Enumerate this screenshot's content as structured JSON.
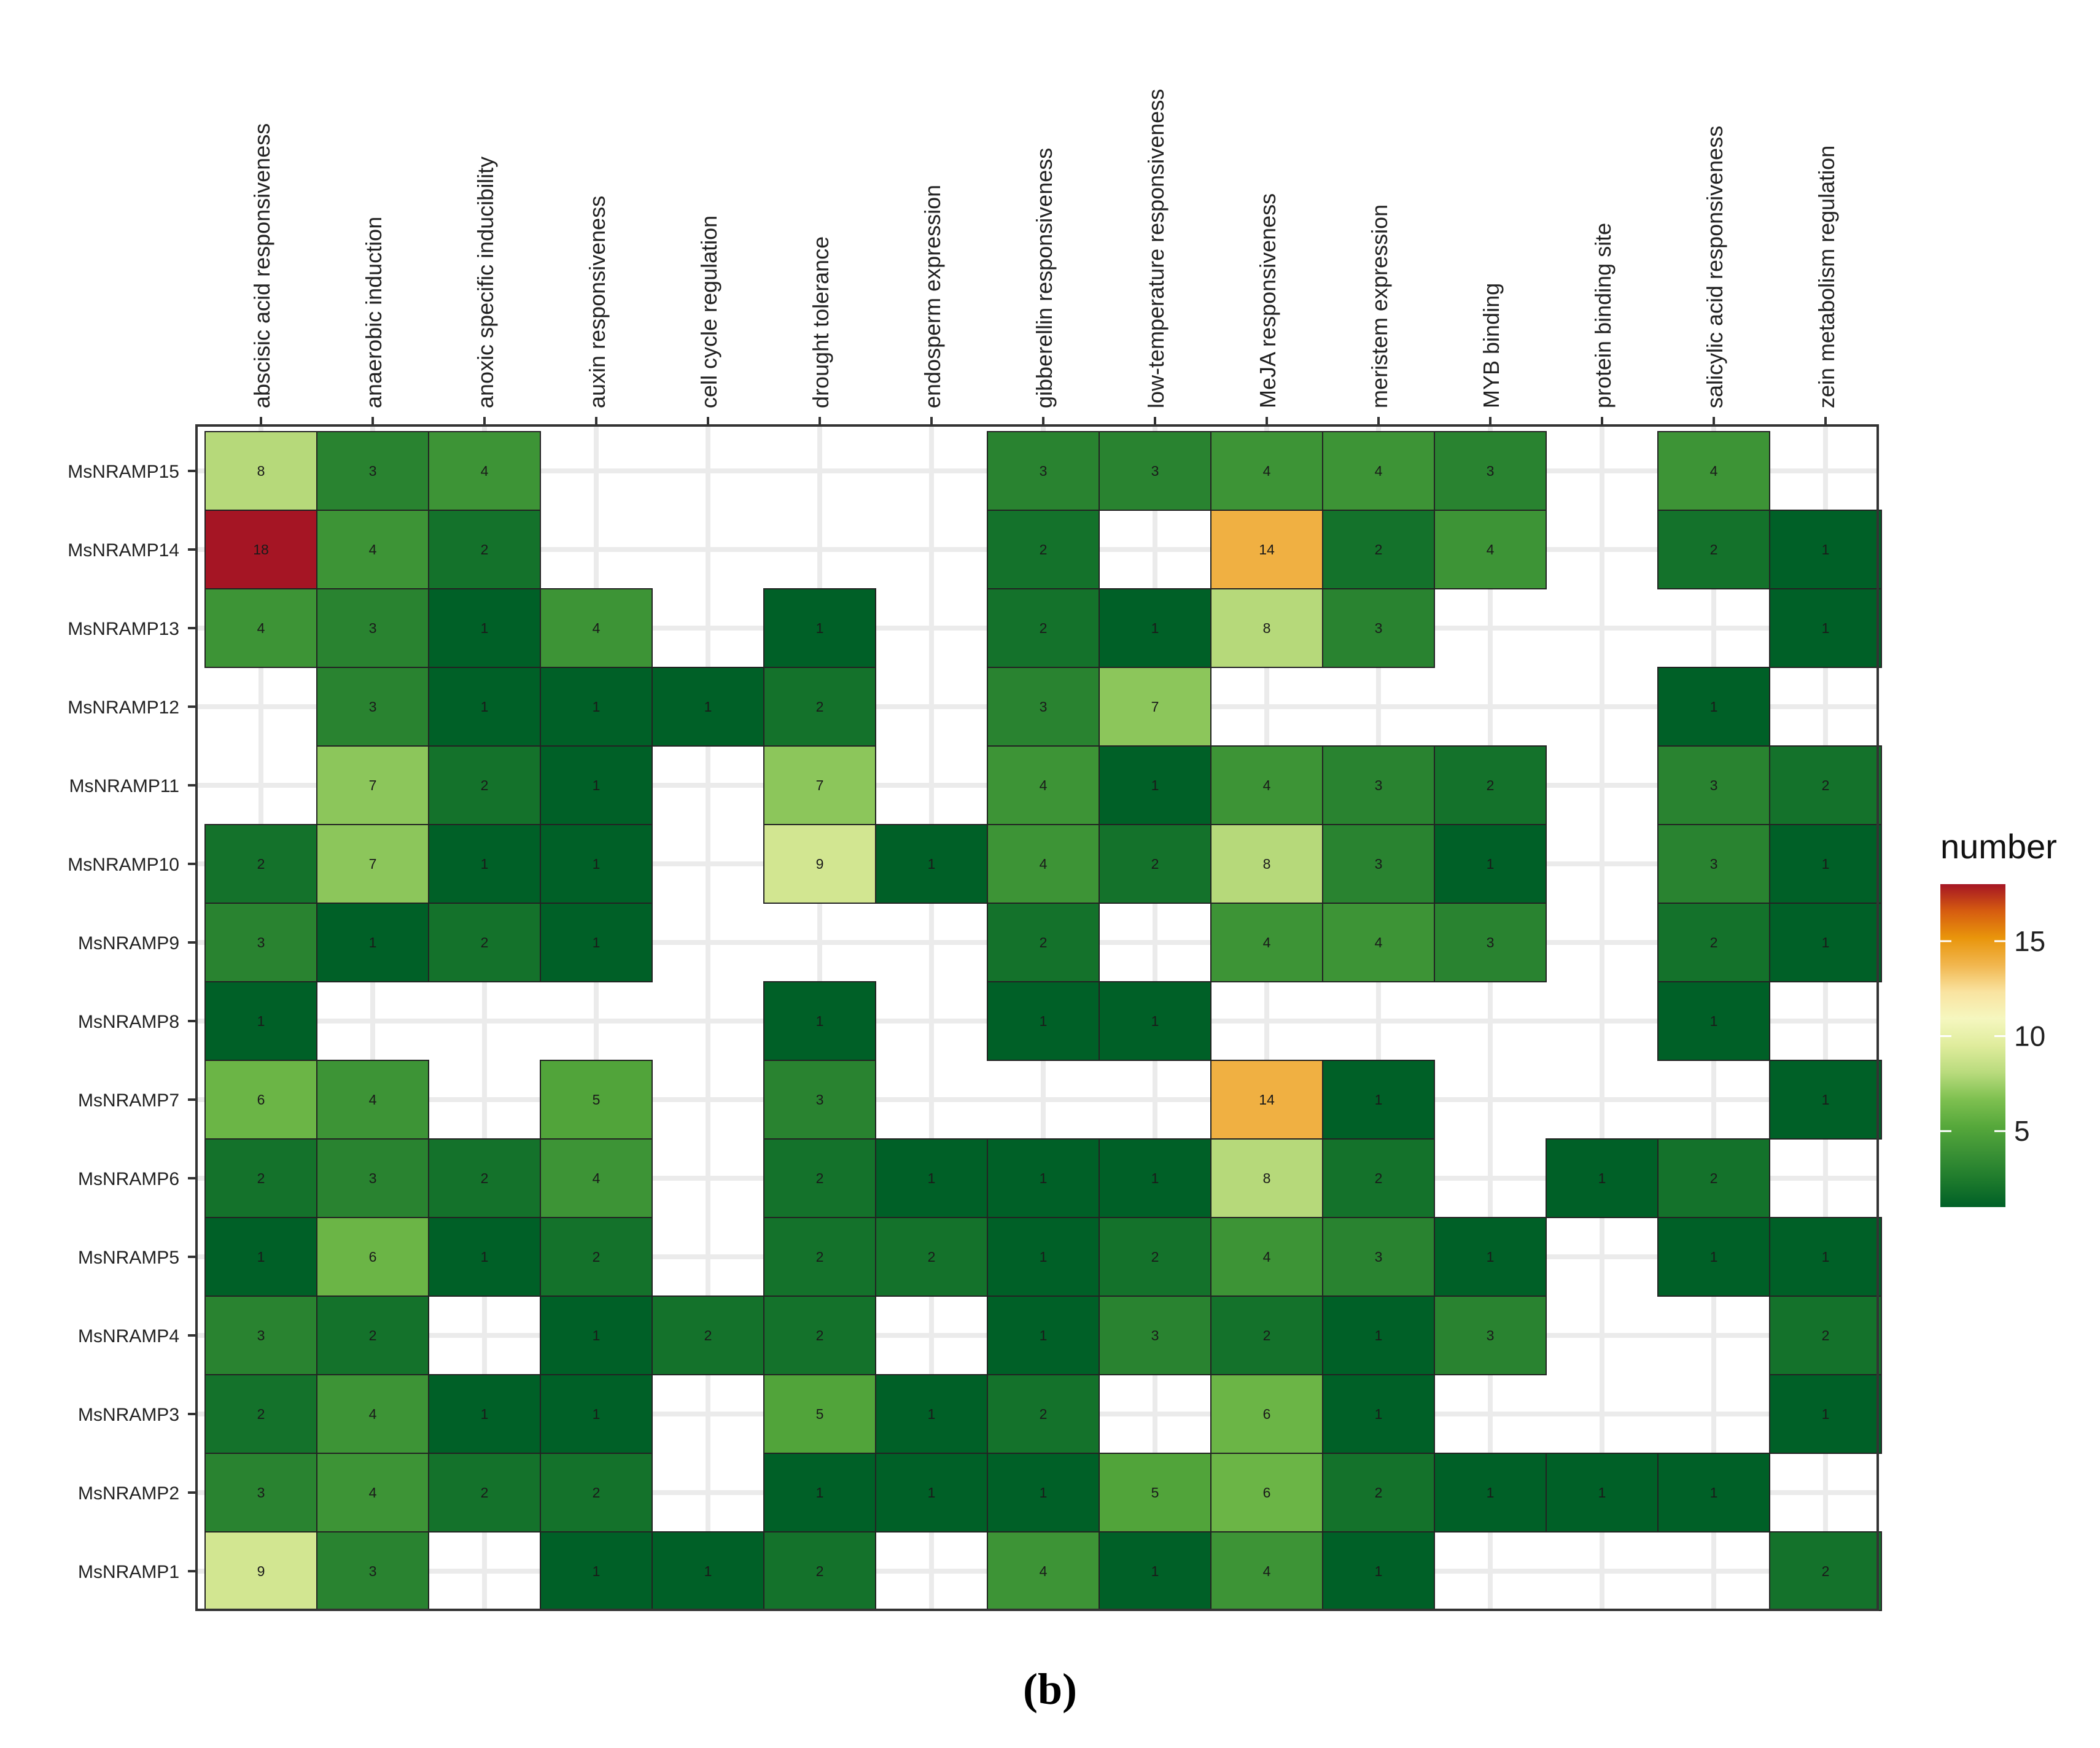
{
  "caption": "(b)",
  "chart_data": {
    "type": "heatmap",
    "title": "",
    "xlabel": "",
    "ylabel": "",
    "x": [
      "abscisic acid responsiveness",
      "anaerobic induction",
      "anoxic specific inducibility",
      "auxin responsiveness",
      "cell cycle regulation",
      "drought tolerance",
      "endosperm expression",
      "gibberellin responsiveness",
      "low-temperature responsiveness",
      "MeJA responsiveness",
      "meristem expression",
      "MYB binding",
      "protein binding site",
      "salicylic acid responsiveness",
      "zein metabolism regulation"
    ],
    "x_position": "top",
    "y": [
      "MsNRAMP15",
      "MsNRAMP14",
      "MsNRAMP13",
      "MsNRAMP12",
      "MsNRAMP11",
      "MsNRAMP10",
      "MsNRAMP9",
      "MsNRAMP8",
      "MsNRAMP7",
      "MsNRAMP6",
      "MsNRAMP5",
      "MsNRAMP4",
      "MsNRAMP3",
      "MsNRAMP2",
      "MsNRAMP1"
    ],
    "values": [
      [
        8,
        3,
        4,
        null,
        null,
        null,
        null,
        3,
        3,
        4,
        4,
        3,
        null,
        4,
        null
      ],
      [
        18,
        4,
        2,
        null,
        null,
        null,
        null,
        2,
        null,
        14,
        2,
        4,
        null,
        2,
        1
      ],
      [
        4,
        3,
        1,
        4,
        null,
        1,
        null,
        2,
        1,
        8,
        3,
        null,
        null,
        null,
        1
      ],
      [
        null,
        3,
        1,
        1,
        1,
        2,
        null,
        3,
        7,
        null,
        null,
        null,
        null,
        1,
        null
      ],
      [
        null,
        7,
        2,
        1,
        null,
        7,
        null,
        4,
        1,
        4,
        3,
        2,
        null,
        3,
        2
      ],
      [
        2,
        7,
        1,
        1,
        null,
        9,
        1,
        4,
        2,
        8,
        3,
        1,
        null,
        3,
        1
      ],
      [
        3,
        1,
        2,
        1,
        null,
        null,
        null,
        2,
        null,
        4,
        4,
        3,
        null,
        2,
        1
      ],
      [
        1,
        null,
        null,
        null,
        null,
        1,
        null,
        1,
        1,
        null,
        null,
        null,
        null,
        1,
        null
      ],
      [
        6,
        4,
        null,
        5,
        null,
        3,
        null,
        null,
        null,
        14,
        1,
        null,
        null,
        null,
        1
      ],
      [
        2,
        3,
        2,
        4,
        null,
        2,
        1,
        1,
        1,
        8,
        2,
        null,
        1,
        2,
        null
      ],
      [
        1,
        6,
        1,
        2,
        null,
        2,
        2,
        1,
        2,
        4,
        3,
        1,
        null,
        1,
        1
      ],
      [
        3,
        2,
        null,
        1,
        2,
        2,
        null,
        1,
        3,
        2,
        1,
        3,
        null,
        null,
        2
      ],
      [
        2,
        4,
        1,
        1,
        null,
        5,
        1,
        2,
        null,
        6,
        1,
        null,
        null,
        null,
        1
      ],
      [
        3,
        4,
        2,
        2,
        null,
        1,
        1,
        1,
        5,
        6,
        2,
        1,
        1,
        1,
        null
      ],
      [
        9,
        3,
        null,
        1,
        1,
        2,
        null,
        4,
        1,
        4,
        1,
        null,
        null,
        null,
        2
      ]
    ],
    "legend": {
      "title": "number",
      "position": "right",
      "ticks": [
        5,
        10,
        15
      ],
      "range": [
        1,
        18
      ]
    },
    "colors": {
      "scale": [
        "#006027",
        "#1d7a2c",
        "#3a9135",
        "#56a83b",
        "#7ec050",
        "#b9db7d",
        "#dfec9c",
        "#f5f7bf",
        "#f9e3a0",
        "#f1b64e",
        "#e9950b",
        "#d65c10",
        "#a51524"
      ],
      "grid": "#ebebeb",
      "panel_border": "#333333",
      "tile_border": "#222222"
    },
    "grid": true
  }
}
